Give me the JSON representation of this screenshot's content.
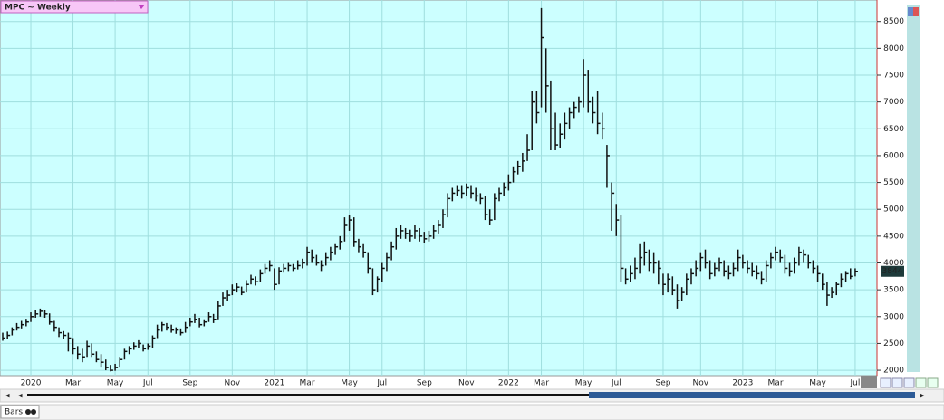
{
  "chart_data": {
    "type": "ohlc",
    "title": "MPC ~ Weekly",
    "categories": [
      null,
      null,
      null,
      null,
      null,
      null,
      "2020",
      null,
      null,
      null,
      null,
      null,
      null,
      null,
      null,
      "Mar",
      null,
      null,
      null,
      null,
      null,
      null,
      null,
      null,
      "May",
      null,
      null,
      null,
      null,
      null,
      null,
      "Jul",
      null,
      null,
      null,
      null,
      null,
      null,
      null,
      null,
      "Sep",
      null,
      null,
      null,
      null,
      null,
      null,
      null,
      null,
      "Nov",
      null,
      null,
      null,
      null,
      null,
      null,
      null,
      null,
      "2021",
      null,
      null,
      null,
      null,
      null,
      null,
      "Mar",
      null,
      null,
      null,
      null,
      null,
      null,
      null,
      null,
      "May",
      null,
      null,
      null,
      null,
      null,
      null,
      "Jul",
      null,
      null,
      null,
      null,
      null,
      null,
      null,
      null,
      "Sep",
      null,
      null,
      null,
      null,
      null,
      null,
      null,
      null,
      "Nov",
      null,
      null,
      null,
      null,
      null,
      null,
      null,
      null,
      "2022",
      null,
      null,
      null,
      null,
      null,
      null,
      "Mar",
      null,
      null,
      null,
      null,
      null,
      null,
      null,
      null,
      "May",
      null,
      null,
      null,
      null,
      null,
      null,
      "Jul",
      null,
      null,
      null,
      null,
      null,
      null,
      null,
      null,
      null,
      "Sep",
      null,
      null,
      null,
      null,
      null,
      null,
      null,
      "Nov",
      null,
      null,
      null,
      null,
      null,
      null,
      null,
      null,
      "2023",
      null,
      null,
      null,
      null,
      null,
      null,
      "Mar",
      null,
      null,
      null,
      null,
      null,
      null,
      null,
      null,
      "May",
      null,
      null,
      null,
      null,
      null,
      null,
      null,
      "Jul"
    ],
    "high": [
      2700,
      2720,
      2800,
      2880,
      2920,
      2960,
      3080,
      3120,
      3150,
      3130,
      3060,
      2920,
      2800,
      2730,
      2700,
      2600,
      2450,
      2400,
      2550,
      2500,
      2350,
      2300,
      2200,
      2100,
      2120,
      2250,
      2400,
      2450,
      2520,
      2560,
      2480,
      2500,
      2650,
      2850,
      2900,
      2880,
      2850,
      2800,
      2780,
      2900,
      2980,
      3050,
      2980,
      2950,
      3080,
      3050,
      3300,
      3450,
      3500,
      3600,
      3620,
      3560,
      3680,
      3780,
      3750,
      3880,
      3980,
      4050,
      3900,
      3920,
      3980,
      4000,
      3980,
      4050,
      4080,
      4300,
      4250,
      4150,
      4050,
      4200,
      4300,
      4350,
      4500,
      4850,
      4900,
      4850,
      4450,
      4350,
      4200,
      3900,
      3750,
      4000,
      4200,
      4400,
      4650,
      4700,
      4650,
      4620,
      4700,
      4650,
      4580,
      4600,
      4700,
      4800,
      5000,
      5300,
      5400,
      5450,
      5450,
      5480,
      5450,
      5400,
      5300,
      5250,
      5000,
      5300,
      5400,
      5500,
      5650,
      5800,
      5900,
      6050,
      6400,
      7200,
      7200,
      8750,
      8000,
      7400,
      6800,
      6600,
      6800,
      6900,
      7000,
      7100,
      7800,
      7600,
      7100,
      7200,
      6800,
      6200,
      5500,
      5100,
      4900,
      3900,
      3950,
      4100,
      4350,
      4400,
      4250,
      4200,
      4050,
      3800,
      3800,
      3750,
      3600,
      3550,
      3800,
      3900,
      4050,
      4200,
      4250,
      4050,
      4000,
      4100,
      4050,
      3950,
      4000,
      4250,
      4150,
      4050,
      4000,
      3950,
      3850,
      4050,
      4200,
      4300,
      4250,
      4150,
      4000,
      4100,
      4300,
      4250,
      4150,
      4050,
      3950,
      3800,
      3650,
      3550,
      3650,
      3800,
      3850,
      3900,
      3900
    ],
    "low": [
      2550,
      2580,
      2650,
      2740,
      2780,
      2820,
      2900,
      2980,
      3000,
      2980,
      2850,
      2720,
      2620,
      2580,
      2350,
      2300,
      2200,
      2150,
      2250,
      2250,
      2150,
      2050,
      2000,
      1980,
      1990,
      2050,
      2200,
      2300,
      2380,
      2420,
      2350,
      2380,
      2420,
      2600,
      2720,
      2740,
      2700,
      2680,
      2650,
      2700,
      2820,
      2880,
      2800,
      2820,
      2900,
      2880,
      2950,
      3200,
      3300,
      3400,
      3450,
      3400,
      3450,
      3600,
      3580,
      3650,
      3800,
      3850,
      3500,
      3600,
      3820,
      3850,
      3850,
      3880,
      3900,
      3950,
      4000,
      3950,
      3850,
      3950,
      4050,
      4150,
      4250,
      4400,
      4600,
      4300,
      4200,
      4100,
      3800,
      3400,
      3450,
      3650,
      3850,
      4050,
      4250,
      4450,
      4450,
      4400,
      4450,
      4400,
      4380,
      4400,
      4450,
      4550,
      4650,
      4850,
      5150,
      5250,
      5200,
      5250,
      5200,
      5150,
      5100,
      4800,
      4700,
      4800,
      5150,
      5250,
      5350,
      5500,
      5650,
      5700,
      5900,
      6100,
      6600,
      6900,
      6800,
      6100,
      6100,
      6150,
      6300,
      6500,
      6700,
      6800,
      6900,
      6800,
      6600,
      6400,
      6300,
      5400,
      4600,
      4500,
      3650,
      3600,
      3650,
      3700,
      3800,
      3950,
      3850,
      3800,
      3600,
      3400,
      3450,
      3400,
      3150,
      3300,
      3400,
      3600,
      3750,
      3850,
      3900,
      3700,
      3750,
      3850,
      3750,
      3700,
      3750,
      3850,
      3900,
      3800,
      3750,
      3700,
      3600,
      3650,
      3900,
      4050,
      4000,
      3800,
      3750,
      3800,
      3950,
      4000,
      3900,
      3800,
      3650,
      3500,
      3200,
      3350,
      3400,
      3550,
      3650,
      3700,
      3750
    ],
    "close": [
      2600,
      2650,
      2750,
      2800,
      2850,
      2900,
      3000,
      3050,
      3100,
      3050,
      2900,
      2800,
      2700,
      2650,
      2600,
      2400,
      2300,
      2250,
      2450,
      2300,
      2200,
      2150,
      2050,
      2000,
      2050,
      2200,
      2350,
      2400,
      2450,
      2500,
      2400,
      2450,
      2600,
      2750,
      2850,
      2800,
      2750,
      2750,
      2700,
      2800,
      2900,
      2950,
      2850,
      2900,
      3000,
      2950,
      3200,
      3350,
      3400,
      3500,
      3550,
      3450,
      3600,
      3700,
      3650,
      3800,
      3900,
      3950,
      3600,
      3850,
      3900,
      3950,
      3900,
      3950,
      4000,
      4200,
      4100,
      4000,
      3950,
      4100,
      4200,
      4300,
      4400,
      4700,
      4800,
      4400,
      4300,
      4200,
      3900,
      3500,
      3700,
      3900,
      4100,
      4300,
      4500,
      4600,
      4550,
      4500,
      4600,
      4500,
      4450,
      4500,
      4600,
      4700,
      4900,
      5200,
      5300,
      5350,
      5300,
      5400,
      5300,
      5250,
      5200,
      4900,
      4800,
      5200,
      5300,
      5400,
      5500,
      5700,
      5800,
      5900,
      6100,
      7000,
      6800,
      8200,
      7300,
      6500,
      6200,
      6400,
      6600,
      6800,
      6900,
      7000,
      7500,
      7000,
      6800,
      6600,
      6500,
      6000,
      5300,
      4800,
      3900,
      3700,
      3800,
      3900,
      4100,
      4200,
      4000,
      4000,
      3900,
      3600,
      3700,
      3500,
      3300,
      3450,
      3700,
      3800,
      3900,
      4100,
      4000,
      3800,
      3900,
      4000,
      3850,
      3800,
      3900,
      4100,
      4000,
      3900,
      3850,
      3800,
      3700,
      3950,
      4100,
      4200,
      4100,
      3900,
      3850,
      4000,
      4200,
      4150,
      4000,
      3900,
      3800,
      3600,
      3400,
      3450,
      3600,
      3700,
      3800,
      3750,
      3844
    ],
    "ylim": [
      1900,
      8900
    ],
    "yticks": [
      2000,
      2500,
      3000,
      3500,
      4000,
      4500,
      5000,
      5500,
      6000,
      6500,
      7000,
      7500,
      8000,
      8500
    ],
    "color": "#111111",
    "grid": true
  },
  "tab": "Bars"
}
